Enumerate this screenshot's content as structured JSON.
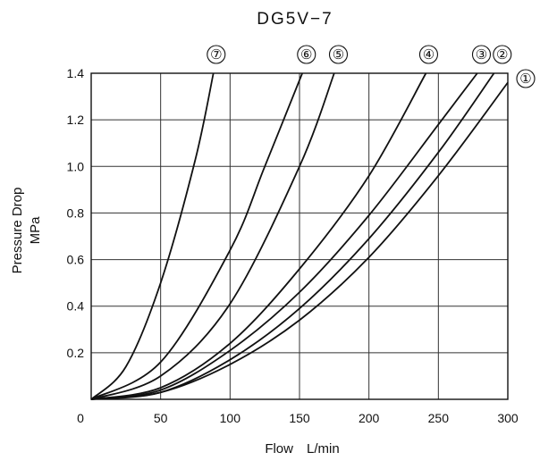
{
  "chart_data": {
    "type": "line",
    "title": "DG5V−7",
    "xlabel": "Flow　L/min",
    "ylabel": "Pressure Drop",
    "ylabel_unit": "MPa",
    "xlim": [
      0,
      300
    ],
    "ylim": [
      0,
      1.4
    ],
    "x_ticks": [
      {
        "value": 0,
        "label": "0"
      },
      {
        "value": 50,
        "label": "50"
      },
      {
        "value": 100,
        "label": "100"
      },
      {
        "value": 150,
        "label": "150"
      },
      {
        "value": 200,
        "label": "200"
      },
      {
        "value": 250,
        "label": "250"
      },
      {
        "value": 300,
        "label": "300"
      }
    ],
    "y_ticks": [
      {
        "value": 0.2,
        "label": "0.2"
      },
      {
        "value": 0.4,
        "label": "0.4"
      },
      {
        "value": 0.6,
        "label": "0.6"
      },
      {
        "value": 0.8,
        "label": "0.8"
      },
      {
        "value": 1.0,
        "label": "1.0"
      },
      {
        "value": 1.2,
        "label": "1.2"
      },
      {
        "value": 1.4,
        "label": "1.4"
      }
    ],
    "grid": true,
    "series": [
      {
        "name": "①",
        "x": [
          0,
          50,
          100,
          150,
          200,
          250,
          300
        ],
        "y": [
          0,
          0.03,
          0.15,
          0.34,
          0.61,
          0.96,
          1.36
        ]
      },
      {
        "name": "②",
        "x": [
          0,
          50,
          100,
          150,
          200,
          250,
          290
        ],
        "y": [
          0,
          0.03,
          0.17,
          0.39,
          0.69,
          1.06,
          1.4
        ]
      },
      {
        "name": "③",
        "x": [
          0,
          50,
          100,
          150,
          200,
          250,
          278
        ],
        "y": [
          0,
          0.04,
          0.21,
          0.46,
          0.79,
          1.18,
          1.4
        ]
      },
      {
        "name": "④",
        "x": [
          0,
          50,
          100,
          150,
          200,
          241
        ],
        "y": [
          0,
          0.05,
          0.24,
          0.56,
          0.96,
          1.4
        ]
      },
      {
        "name": "⑤",
        "x": [
          0,
          50,
          100,
          150,
          175
        ],
        "y": [
          0,
          0.1,
          0.41,
          1.0,
          1.4
        ]
      },
      {
        "name": "⑥",
        "x": [
          0,
          50,
          100,
          125,
          152
        ],
        "y": [
          0,
          0.16,
          0.64,
          1.0,
          1.4
        ]
      },
      {
        "name": "⑦",
        "x": [
          0,
          25,
          50,
          75,
          88
        ],
        "y": [
          0,
          0.14,
          0.5,
          1.03,
          1.4
        ]
      }
    ],
    "curve_labels": [
      {
        "label": "⑦",
        "x": 90
      },
      {
        "label": "⑥",
        "x": 155
      },
      {
        "label": "⑤",
        "x": 178
      },
      {
        "label": "④",
        "x": 243
      },
      {
        "label": "③",
        "x": 281
      },
      {
        "label": "②",
        "x": 296
      }
    ],
    "end_label": "①"
  }
}
